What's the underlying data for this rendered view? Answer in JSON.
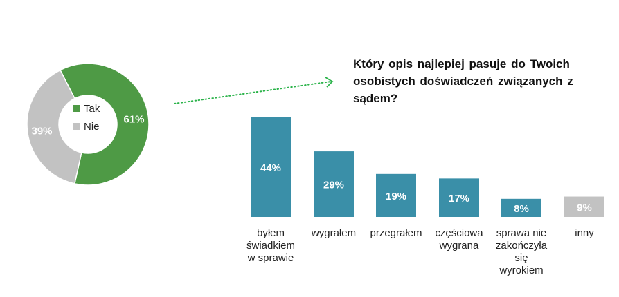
{
  "chart_data": [
    {
      "type": "pie",
      "donut": true,
      "slices": [
        {
          "label": "Tak",
          "value": 61,
          "value_label": "61%",
          "color": "#4e9a45"
        },
        {
          "label": "Nie",
          "value": 39,
          "value_label": "39%",
          "color": "#c2c2c2"
        }
      ],
      "legend_position": "center"
    },
    {
      "type": "bar",
      "title_lines": [
        "Który opis najlepiej pasuje do Twoich",
        "osobistych  doświadczeń związanych z",
        "sądem?"
      ],
      "categories": [
        [
          "byłem",
          "świadkiem",
          "w sprawie"
        ],
        [
          "wygrałem"
        ],
        [
          "przegrałem"
        ],
        [
          "częściowa",
          "wygrana"
        ],
        [
          "sprawa nie",
          "zakończyła",
          "się",
          "wyrokiem"
        ],
        [
          "inny"
        ]
      ],
      "values": [
        44,
        29,
        19,
        17,
        8,
        9
      ],
      "value_labels": [
        "44%",
        "29%",
        "19%",
        "17%",
        "8%",
        "9%"
      ],
      "colors": [
        "#3a8fa8",
        "#3a8fa8",
        "#3a8fa8",
        "#3a8fa8",
        "#3a8fa8",
        "#c2c2c2"
      ],
      "ylim": [
        0,
        44
      ],
      "grid": false
    }
  ],
  "connector": {
    "color": "#2bb34a",
    "style": "dotted-arrow"
  }
}
